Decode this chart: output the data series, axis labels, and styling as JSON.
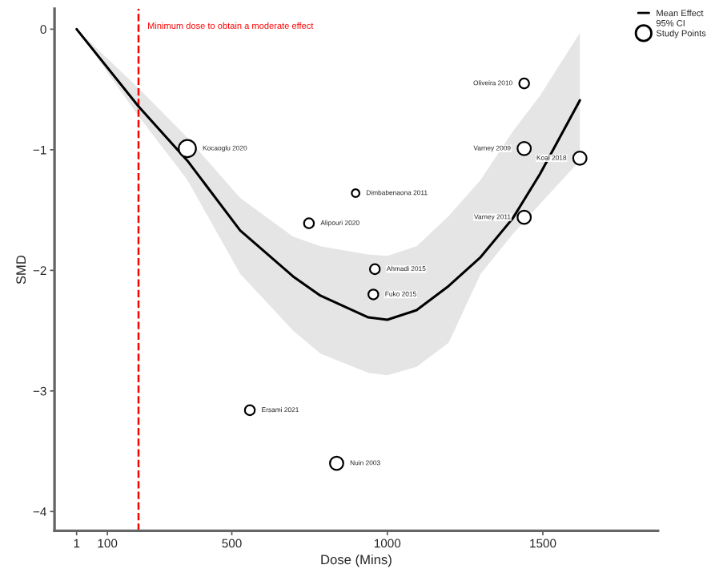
{
  "chart_data": {
    "type": "scatter",
    "xlabel": "Dose (Mins)",
    "ylabel": "SMD",
    "xlim": [
      -70,
      1870
    ],
    "ylim": [
      -4.16,
      0.17
    ],
    "xticks": [
      1,
      100,
      500,
      1000,
      1500
    ],
    "yticks": [
      {
        "value": 0,
        "label": "0"
      },
      {
        "value": -1,
        "label": "−1"
      },
      {
        "value": -2,
        "label": "−2"
      },
      {
        "value": -3,
        "label": "−3"
      },
      {
        "value": -4,
        "label": "−4"
      }
    ],
    "series": [
      {
        "type": "line",
        "name": "Mean Effect",
        "color": "#000000",
        "marker": "none",
        "x": [
          1,
          200,
          357,
          527,
          697,
          785,
          939,
          1000,
          1094,
          1197,
          1300,
          1403,
          1491,
          1619
        ],
        "values": [
          0,
          -0.64,
          -1.09,
          -1.67,
          -2.05,
          -2.21,
          -2.39,
          -2.41,
          -2.33,
          -2.13,
          -1.89,
          -1.57,
          -1.2,
          -0.59
        ],
        "lower": [
          0,
          -0.72,
          -1.25,
          -2.03,
          -2.5,
          -2.69,
          -2.85,
          -2.87,
          -2.8,
          -2.6,
          -2.03,
          -1.7,
          -1.45,
          -1.09
        ],
        "upper": [
          0,
          -0.49,
          -0.9,
          -1.4,
          -1.72,
          -1.8,
          -1.87,
          -1.88,
          -1.8,
          -1.55,
          -1.25,
          -0.85,
          -0.55,
          -0.03
        ]
      },
      {
        "name": "Study Points",
        "color": "#000000",
        "x": [
          357,
          898,
          748,
          960,
          955,
          1440,
          1440,
          1619,
          1440,
          558,
          837
        ],
        "values": [
          -0.99,
          -1.36,
          -1.61,
          -1.99,
          -2.2,
          -0.45,
          -0.99,
          -1.07,
          -1.56,
          -3.16,
          -3.6
        ],
        "sizes": [
          1,
          0.2,
          0.33,
          0.33,
          0.33,
          0.33,
          0.6,
          0.6,
          0.6,
          0.33,
          0.6
        ],
        "value_labels": [
          "Kocaoglu 2020",
          "Dimbabenaona 2011",
          "Alipouri 2020",
          "Ahmadi 2015",
          "Fuko 2015",
          "Oliveira 2010",
          "Varney 2009",
          "Koal 2018",
          "Varney 2011",
          "Ersami 2021",
          "Nuin 2003"
        ]
      }
    ],
    "annotations": [
      "95% CI"
    ],
    "ref_lines": [
      {
        "axis": "x",
        "value": 200,
        "label": "Minimum dose to obtain a moderate effect",
        "color": "#ff0000",
        "line_style": "dashed"
      }
    ],
    "legend": "top right",
    "grid": false,
    "marker": "circle"
  }
}
